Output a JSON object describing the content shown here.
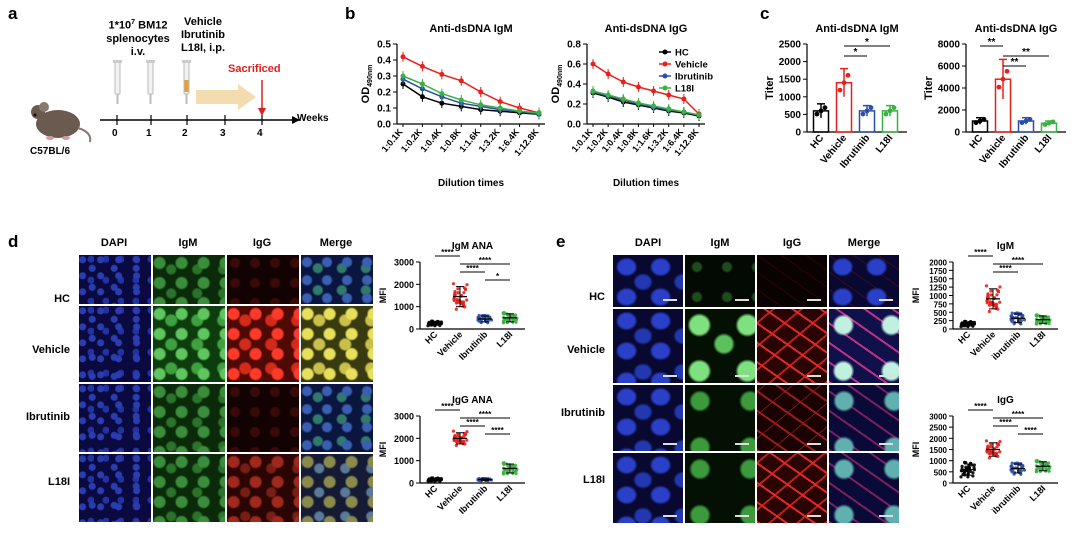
{
  "panels": {
    "a": "a",
    "b": "b",
    "c": "c",
    "d": "d",
    "e": "e"
  },
  "panel_a": {
    "dose_line1": "1*10",
    "dose_sup": "7",
    "dose_rest": " BM12",
    "dose_line2": "splenocytes",
    "dose_line3": "i.v.",
    "treat_line1": "Vehicle",
    "treat_line2": "Ibrutinib",
    "treat_line3": "L18I, i.p.",
    "sacrificed": "Sacrificed",
    "weeks_label": "Weeks",
    "ticks": [
      "0",
      "1",
      "2",
      "3",
      "4"
    ],
    "strain": "C57BL/6",
    "colors": {
      "sacrificed": "#e02020",
      "arrow": "#f2dcb0"
    }
  },
  "colors": {
    "HC": "#000000",
    "Vehicle": "#e8201c",
    "Ibrutinib": "#2b4fa8",
    "L18I": "#3cb043"
  },
  "chart_data": [
    {
      "id": "b1",
      "type": "line",
      "title": "Anti-dsDNA IgM",
      "xlabel": "Dilution times",
      "ylabel": "OD",
      "ylabel_sub": "490nm",
      "categories": [
        "1:0.1K",
        "1:0.2K",
        "1:0.4K",
        "1:0.8K",
        "1:1.6K",
        "1:3.2K",
        "1:6.4K",
        "1:12.8K"
      ],
      "ylim": [
        0,
        0.5
      ],
      "yticks": [
        "0.0",
        "0.1",
        "0.2",
        "0.3",
        "0.4",
        "0.5"
      ],
      "series": [
        {
          "name": "HC",
          "values": [
            0.25,
            0.17,
            0.13,
            0.11,
            0.09,
            0.08,
            0.07,
            0.06
          ]
        },
        {
          "name": "Vehicle",
          "values": [
            0.42,
            0.36,
            0.31,
            0.27,
            0.2,
            0.14,
            0.1,
            0.07
          ]
        },
        {
          "name": "Ibrutinib",
          "values": [
            0.28,
            0.22,
            0.17,
            0.13,
            0.11,
            0.09,
            0.08,
            0.06
          ]
        },
        {
          "name": "L18I",
          "values": [
            0.3,
            0.25,
            0.19,
            0.15,
            0.12,
            0.1,
            0.08,
            0.07
          ]
        }
      ]
    },
    {
      "id": "b2",
      "type": "line",
      "title": "Anti-dsDNA IgG",
      "xlabel": "Dilution times",
      "ylabel": "OD",
      "ylabel_sub": "490nm",
      "categories": [
        "1:0.1K",
        "1:0.2K",
        "1:0.4K",
        "1:0.8K",
        "1:1.6K",
        "1:3.2K",
        "1:6.4K",
        "1:12.8K"
      ],
      "ylim": [
        0,
        0.8
      ],
      "yticks": [
        "0.0",
        "0.2",
        "0.4",
        "0.6",
        "0.8"
      ],
      "legend": [
        "HC",
        "Vehicle",
        "Ibrutinib",
        "L18I"
      ],
      "legend_position": "top-right",
      "series": [
        {
          "name": "HC",
          "values": [
            0.31,
            0.27,
            0.22,
            0.19,
            0.16,
            0.13,
            0.11,
            0.08
          ]
        },
        {
          "name": "Vehicle",
          "values": [
            0.6,
            0.5,
            0.42,
            0.37,
            0.33,
            0.29,
            0.25,
            0.1
          ]
        },
        {
          "name": "Ibrutinib",
          "values": [
            0.32,
            0.28,
            0.24,
            0.2,
            0.17,
            0.14,
            0.12,
            0.09
          ]
        },
        {
          "name": "L18I",
          "values": [
            0.33,
            0.29,
            0.25,
            0.21,
            0.18,
            0.15,
            0.12,
            0.09
          ]
        }
      ]
    },
    {
      "id": "c1",
      "type": "bar",
      "title": "Anti-dsDNA IgM",
      "ylabel": "Titer",
      "categories": [
        "HC",
        "Vehicle",
        "Ibrutinib",
        "L18I"
      ],
      "values": [
        600,
        1400,
        600,
        600
      ],
      "errors": [
        200,
        400,
        150,
        150
      ],
      "ylim": [
        0,
        2500
      ],
      "yticks": [
        "0",
        "500",
        "1000",
        "1500",
        "2000",
        "2500"
      ],
      "significance": [
        {
          "from": 1,
          "to": 3,
          "label": "*"
        },
        {
          "from": 1,
          "to": 2,
          "label": "*"
        }
      ]
    },
    {
      "id": "c2",
      "type": "bar",
      "title": "Anti-dsDNA IgG",
      "ylabel": "Titer",
      "categories": [
        "HC",
        "Vehicle",
        "Ibrutinib",
        "L18I"
      ],
      "values": [
        1000,
        4800,
        1000,
        800
      ],
      "errors": [
        300,
        1800,
        300,
        200
      ],
      "ylim": [
        0,
        8000
      ],
      "yticks": [
        "0",
        "2000",
        "4000",
        "6000",
        "8000"
      ],
      "significance": [
        {
          "from": 0,
          "to": 1,
          "label": "**"
        },
        {
          "from": 1,
          "to": 3,
          "label": "**"
        },
        {
          "from": 1,
          "to": 2,
          "label": "**"
        }
      ]
    },
    {
      "id": "d1",
      "type": "scatter",
      "title": "IgM ANA",
      "ylabel": "MFI",
      "categories": [
        "HC",
        "Vehicle",
        "Ibrutinib",
        "L18I"
      ],
      "means": [
        250,
        1450,
        450,
        500
      ],
      "sds": [
        80,
        450,
        130,
        180
      ],
      "ylim": [
        0,
        3000
      ],
      "yticks": [
        "0",
        "1000",
        "2000",
        "3000"
      ],
      "significance": [
        {
          "from": 0,
          "to": 1,
          "label": "****"
        },
        {
          "from": 1,
          "to": 3,
          "label": "****"
        },
        {
          "from": 1,
          "to": 2,
          "label": "****"
        },
        {
          "from": 2,
          "to": 3,
          "label": "*"
        }
      ]
    },
    {
      "id": "d2",
      "type": "scatter",
      "title": "IgG ANA",
      "ylabel": "MFI",
      "categories": [
        "HC",
        "Vehicle",
        "Ibrutinib",
        "L18I"
      ],
      "means": [
        150,
        2000,
        150,
        650
      ],
      "sds": [
        60,
        250,
        40,
        200
      ],
      "ylim": [
        0,
        3000
      ],
      "yticks": [
        "0",
        "1000",
        "2000",
        "3000"
      ],
      "significance": [
        {
          "from": 0,
          "to": 1,
          "label": "****"
        },
        {
          "from": 1,
          "to": 3,
          "label": "****"
        },
        {
          "from": 1,
          "to": 2,
          "label": "****"
        },
        {
          "from": 2,
          "to": 3,
          "label": "****"
        }
      ]
    },
    {
      "id": "e1",
      "type": "scatter",
      "title": "IgM",
      "ylabel": "MFI",
      "categories": [
        "HC",
        "Vehicle",
        "ibrutinib",
        "L18I"
      ],
      "means": [
        150,
        900,
        320,
        280
      ],
      "sds": [
        60,
        300,
        130,
        110
      ],
      "ylim": [
        0,
        2000
      ],
      "yticks": [
        "0",
        "250",
        "500",
        "750",
        "1000",
        "1250",
        "1500",
        "1750",
        "2000"
      ],
      "significance": [
        {
          "from": 0,
          "to": 1,
          "label": "****"
        },
        {
          "from": 1,
          "to": 3,
          "label": "****"
        },
        {
          "from": 1,
          "to": 2,
          "label": "****"
        }
      ]
    },
    {
      "id": "e2",
      "type": "scatter",
      "title": "IgG",
      "ylabel": "MFI",
      "categories": [
        "HC",
        "Vehicle",
        "ibrutinib",
        "L18I"
      ],
      "means": [
        600,
        1500,
        650,
        750
      ],
      "sds": [
        250,
        300,
        200,
        200
      ],
      "ylim": [
        0,
        3000
      ],
      "yticks": [
        "0",
        "500",
        "1000",
        "1500",
        "2000",
        "2500",
        "3000"
      ],
      "significance": [
        {
          "from": 0,
          "to": 1,
          "label": "****"
        },
        {
          "from": 1,
          "to": 3,
          "label": "****"
        },
        {
          "from": 1,
          "to": 2,
          "label": "****"
        },
        {
          "from": 2,
          "to": 3,
          "label": "****"
        }
      ]
    }
  ],
  "panel_d": {
    "columns": [
      "DAPI",
      "IgM",
      "IgG",
      "Merge"
    ],
    "rows": [
      "HC",
      "Vehicle",
      "Ibrutinib",
      "L18I"
    ]
  },
  "panel_e": {
    "columns": [
      "DAPI",
      "IgM",
      "IgG",
      "Merge"
    ],
    "rows": [
      "HC",
      "Vehicle",
      "Ibrutinib",
      "L18I"
    ]
  }
}
